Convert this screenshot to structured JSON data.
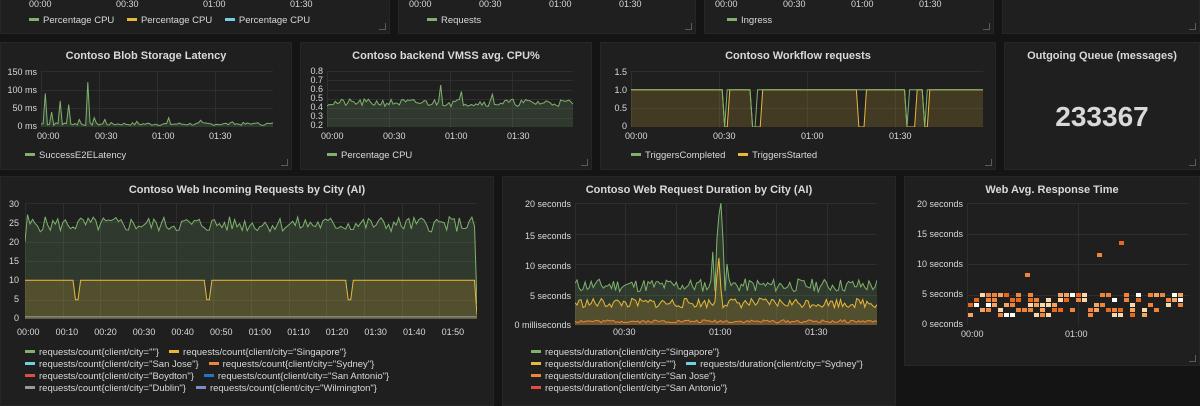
{
  "colors": {
    "green": "#7eb26d",
    "yellow": "#eab839",
    "blue": "#6ed0e0",
    "orange": "#ef843c",
    "red": "#e24d42",
    "lightyellow": "#f9e2d2",
    "grey": "#999999",
    "white": "#ffffff"
  },
  "top_row": {
    "p1": {
      "ticks": [
        "00:00",
        "00:30",
        "01:00",
        "01:30"
      ],
      "legend": [
        {
          "label": "Percentage CPU",
          "color": "#7eb26d"
        },
        {
          "label": "Percentage CPU",
          "color": "#eab839"
        },
        {
          "label": "Percentage CPU",
          "color": "#6ed0e0"
        }
      ]
    },
    "p2": {
      "ticks": [
        "00:00",
        "00:30",
        "01:00",
        "01:30"
      ],
      "legend": [
        {
          "label": "Requests",
          "color": "#7eb26d"
        }
      ]
    },
    "p3": {
      "ticks": [
        "00:00",
        "00:30",
        "01:00",
        "01:30"
      ],
      "legend": [
        {
          "label": "Ingress",
          "color": "#7eb26d"
        }
      ]
    }
  },
  "panels": {
    "blob": {
      "title": "Contoso Blob Storage Latency",
      "yticks": [
        "150 ms",
        "100 ms",
        "50 ms",
        "0 ms"
      ],
      "xticks": [
        "00:00",
        "00:30",
        "01:00",
        "01:30"
      ],
      "legend": [
        {
          "label": "SuccessE2ELatency",
          "color": "#7eb26d"
        }
      ]
    },
    "vmss": {
      "title": "Contoso backend VMSS avg. CPU%",
      "yticks": [
        "0.8",
        "0.7",
        "0.6",
        "0.5",
        "0.4",
        "0.3",
        "0.2"
      ],
      "xticks": [
        "00:00",
        "00:30",
        "01:00",
        "01:30"
      ],
      "legend": [
        {
          "label": "Percentage CPU",
          "color": "#7eb26d"
        }
      ]
    },
    "workflow": {
      "title": "Contoso Workflow requests",
      "yticks": [
        "1.5",
        "1.0",
        "0.5",
        "0"
      ],
      "xticks": [
        "00:00",
        "00:30",
        "01:00",
        "01:30"
      ],
      "legend": [
        {
          "label": "TriggersCompleted",
          "color": "#7eb26d"
        },
        {
          "label": "TriggersStarted",
          "color": "#eab839"
        }
      ]
    },
    "queue": {
      "title": "Outgoing Queue (messages)",
      "value": "233367"
    },
    "incoming": {
      "title": "Contoso Web Incoming Requests by City (AI)",
      "yticks": [
        "30",
        "25",
        "20",
        "15",
        "10",
        "5",
        "0"
      ],
      "xticks": [
        "00:00",
        "00:10",
        "00:20",
        "00:30",
        "00:40",
        "00:50",
        "01:00",
        "01:10",
        "01:20",
        "01:30",
        "01:40",
        "01:50"
      ],
      "legend": [
        {
          "label": "requests/count{client/city=\"\"}",
          "color": "#7eb26d"
        },
        {
          "label": "requests/count{client/city=\"Singapore\"}",
          "color": "#eab839"
        },
        {
          "label": "requests/count{client/city=\"San Jose\"}",
          "color": "#6ed0e0"
        },
        {
          "label": "requests/count{client/city=\"Sydney\"}",
          "color": "#ef843c"
        },
        {
          "label": "requests/count{client/city=\"Boydton\"}",
          "color": "#e24d42"
        },
        {
          "label": "requests/count{client/city=\"San Antonio\"}",
          "color": "#1f78c1"
        },
        {
          "label": "requests/count{client/city=\"Dublin\"}",
          "color": "#999999"
        },
        {
          "label": "requests/count{client/city=\"Wilmington\"}",
          "color": "#7e8ac5"
        }
      ]
    },
    "duration": {
      "title": "Contoso Web Request Duration by City (AI)",
      "yticks": [
        "20 seconds",
        "15 seconds",
        "10 seconds",
        "5 seconds",
        "0 milliseconds"
      ],
      "xticks": [
        "00:30",
        "01:00",
        "01:30"
      ],
      "legend": [
        {
          "label": "requests/duration{client/city=\"Singapore\"}",
          "color": "#7eb26d"
        },
        {
          "label": "requests/duration{client/city=\"\"}",
          "color": "#eab839"
        },
        {
          "label": "requests/duration{client/city=\"Sydney\"}",
          "color": "#6ed0e0"
        },
        {
          "label": "requests/duration{client/city=\"San Jose\"}",
          "color": "#ef843c"
        },
        {
          "label": "requests/duration{client/city=\"San Antonio\"}",
          "color": "#e24d42"
        }
      ]
    },
    "response": {
      "title": "Web Avg. Response Time",
      "yticks": [
        "20 seconds",
        "15 seconds",
        "10 seconds",
        "5 seconds",
        "0 seconds"
      ],
      "xticks": [
        "00:00",
        "01:00"
      ]
    }
  }
}
